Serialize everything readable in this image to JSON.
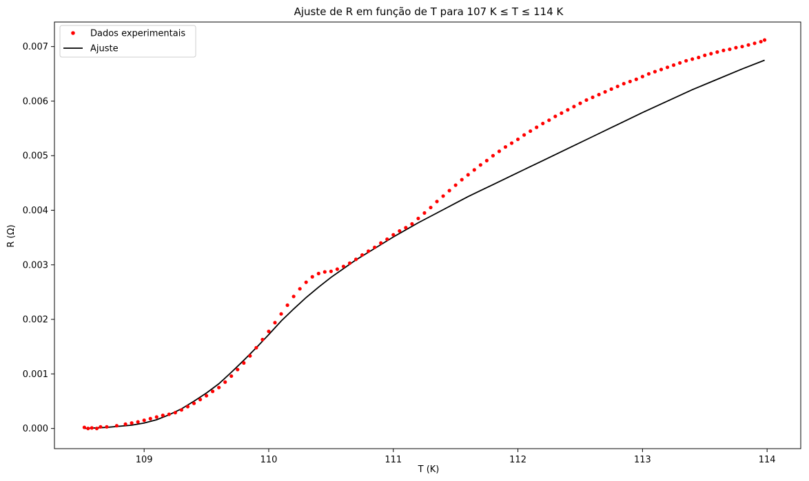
{
  "chart_data": {
    "type": "scatter",
    "title": "Ajuste de R em função de T para 107 K ≤ T ≤ 114 K",
    "xlabel": "T (K)",
    "ylabel": "R (Ω)",
    "xlim": [
      108.28,
      114.27
    ],
    "ylim": [
      -0.00037,
      0.00745
    ],
    "xticks": [
      109,
      110,
      111,
      112,
      113,
      114
    ],
    "xtick_labels": [
      "109",
      "110",
      "111",
      "112",
      "113",
      "114"
    ],
    "yticks": [
      0.0,
      0.001,
      0.002,
      0.003,
      0.004,
      0.005,
      0.006,
      0.007
    ],
    "ytick_labels": [
      "0.000",
      "0.001",
      "0.002",
      "0.003",
      "0.004",
      "0.005",
      "0.006",
      "0.007"
    ],
    "grid": false,
    "legend": {
      "placement": "top-left",
      "entries": [
        "Dados experimentais",
        "Ajuste"
      ]
    },
    "colors": {
      "scatter": "#ff0000",
      "fit": "#000000"
    },
    "series": [
      {
        "name": "Dados experimentais",
        "kind": "scatter",
        "x": [
          108.52,
          108.55,
          108.58,
          108.62,
          108.65,
          108.7,
          108.78,
          108.85,
          108.9,
          108.95,
          109.0,
          109.05,
          109.1,
          109.15,
          109.2,
          109.25,
          109.3,
          109.35,
          109.4,
          109.45,
          109.5,
          109.55,
          109.6,
          109.65,
          109.7,
          109.75,
          109.8,
          109.85,
          109.9,
          109.95,
          110.0,
          110.05,
          110.1,
          110.15,
          110.2,
          110.25,
          110.3,
          110.35,
          110.4,
          110.45,
          110.5,
          110.55,
          110.6,
          110.65,
          110.7,
          110.75,
          110.8,
          110.85,
          110.9,
          110.95,
          111.0,
          111.05,
          111.1,
          111.15,
          111.2,
          111.25,
          111.3,
          111.35,
          111.4,
          111.45,
          111.5,
          111.55,
          111.6,
          111.65,
          111.7,
          111.75,
          111.8,
          111.85,
          111.9,
          111.95,
          112.0,
          112.05,
          112.1,
          112.15,
          112.2,
          112.25,
          112.3,
          112.35,
          112.4,
          112.45,
          112.5,
          112.55,
          112.6,
          112.65,
          112.7,
          112.75,
          112.8,
          112.85,
          112.9,
          112.95,
          113.0,
          113.05,
          113.1,
          113.15,
          113.2,
          113.25,
          113.3,
          113.35,
          113.4,
          113.45,
          113.5,
          113.55,
          113.6,
          113.65,
          113.7,
          113.75,
          113.8,
          113.85,
          113.9,
          113.95,
          113.98
        ],
        "y": [
          2e-05,
          0.0,
          1e-05,
          0.0,
          3e-05,
          3e-05,
          5e-05,
          8e-05,
          0.0001,
          0.00012,
          0.00015,
          0.00018,
          0.00021,
          0.00024,
          0.00026,
          0.00029,
          0.00034,
          0.0004,
          0.00046,
          0.00053,
          0.0006,
          0.00068,
          0.00075,
          0.00085,
          0.00096,
          0.00108,
          0.0012,
          0.00133,
          0.00148,
          0.00163,
          0.00178,
          0.00194,
          0.0021,
          0.00226,
          0.00242,
          0.00256,
          0.00268,
          0.00278,
          0.00284,
          0.00287,
          0.00288,
          0.00292,
          0.00297,
          0.00303,
          0.0031,
          0.00318,
          0.00325,
          0.00332,
          0.0034,
          0.00347,
          0.00355,
          0.00362,
          0.00368,
          0.00375,
          0.00385,
          0.00395,
          0.00405,
          0.00416,
          0.00426,
          0.00436,
          0.00446,
          0.00456,
          0.00465,
          0.00474,
          0.00483,
          0.00491,
          0.005,
          0.00508,
          0.00516,
          0.00523,
          0.0053,
          0.00538,
          0.00545,
          0.00552,
          0.00559,
          0.00565,
          0.00572,
          0.00578,
          0.00584,
          0.0059,
          0.00596,
          0.00602,
          0.00607,
          0.00612,
          0.00617,
          0.00622,
          0.00627,
          0.00632,
          0.00636,
          0.0064,
          0.00645,
          0.0065,
          0.00654,
          0.00658,
          0.00662,
          0.00666,
          0.0067,
          0.00674,
          0.00677,
          0.0068,
          0.00684,
          0.00687,
          0.0069,
          0.00693,
          0.00695,
          0.00698,
          0.007,
          0.00703,
          0.00706,
          0.00709,
          0.00712
        ]
      },
      {
        "name": "Ajuste",
        "kind": "line",
        "x": [
          108.52,
          108.7,
          108.9,
          109.0,
          109.1,
          109.2,
          109.3,
          109.4,
          109.5,
          109.6,
          109.7,
          109.8,
          109.9,
          110.0,
          110.1,
          110.2,
          110.3,
          110.4,
          110.5,
          110.6,
          110.7,
          110.8,
          110.9,
          111.0,
          111.1,
          111.2,
          111.3,
          111.4,
          111.5,
          111.6,
          111.7,
          111.8,
          111.9,
          112.0,
          112.2,
          112.4,
          112.6,
          112.8,
          113.0,
          113.2,
          113.4,
          113.6,
          113.8,
          113.98
        ],
        "y": [
          0.0,
          2e-05,
          6e-05,
          0.0001,
          0.00016,
          0.00025,
          0.00036,
          0.0005,
          0.00065,
          0.00082,
          0.00103,
          0.00125,
          0.00148,
          0.00172,
          0.00197,
          0.00219,
          0.0024,
          0.00259,
          0.00277,
          0.00293,
          0.00309,
          0.00323,
          0.00337,
          0.00351,
          0.00364,
          0.00377,
          0.00389,
          0.00401,
          0.00413,
          0.00425,
          0.00436,
          0.00447,
          0.00458,
          0.00469,
          0.00491,
          0.00513,
          0.00535,
          0.00557,
          0.00579,
          0.006,
          0.00621,
          0.0064,
          0.00659,
          0.00675
        ]
      }
    ]
  }
}
